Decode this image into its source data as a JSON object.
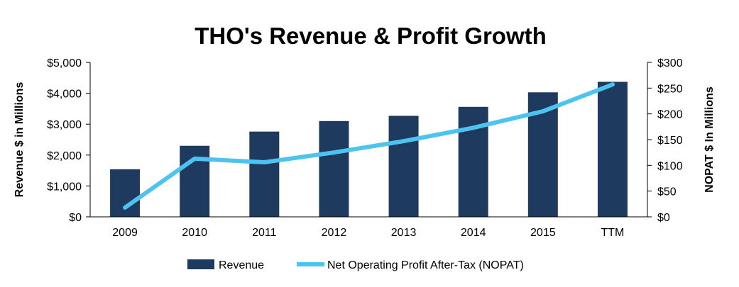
{
  "chart_data": {
    "type": "bar",
    "title": "THO's Revenue & Profit Growth",
    "categories": [
      "2009",
      "2010",
      "2011",
      "2012",
      "2013",
      "2014",
      "2015",
      "TTM"
    ],
    "series": [
      {
        "name": "Revenue",
        "type": "bar",
        "axis": "left",
        "color": "#1f3a5f",
        "values": [
          1540,
          2300,
          2760,
          3100,
          3270,
          3560,
          4030,
          4370
        ]
      },
      {
        "name": "Net Operating Profit After-Tax (NOPAT)",
        "type": "line",
        "axis": "right",
        "color": "#4dc3f0",
        "values": [
          18,
          113,
          106,
          125,
          147,
          173,
          205,
          257
        ]
      }
    ],
    "ylabel": "Revenue $ in Millions",
    "y2label": "NOPAT $ In Millions",
    "ylim": [
      0,
      5000
    ],
    "y2lim": [
      0,
      300
    ],
    "yticks": [
      "$0",
      "$1,000",
      "$2,000",
      "$3,000",
      "$4,000",
      "$5,000"
    ],
    "y2ticks": [
      "$0",
      "$50",
      "$100",
      "$150",
      "$200",
      "$250",
      "$300"
    ],
    "grid": false,
    "legend_position": "bottom"
  }
}
